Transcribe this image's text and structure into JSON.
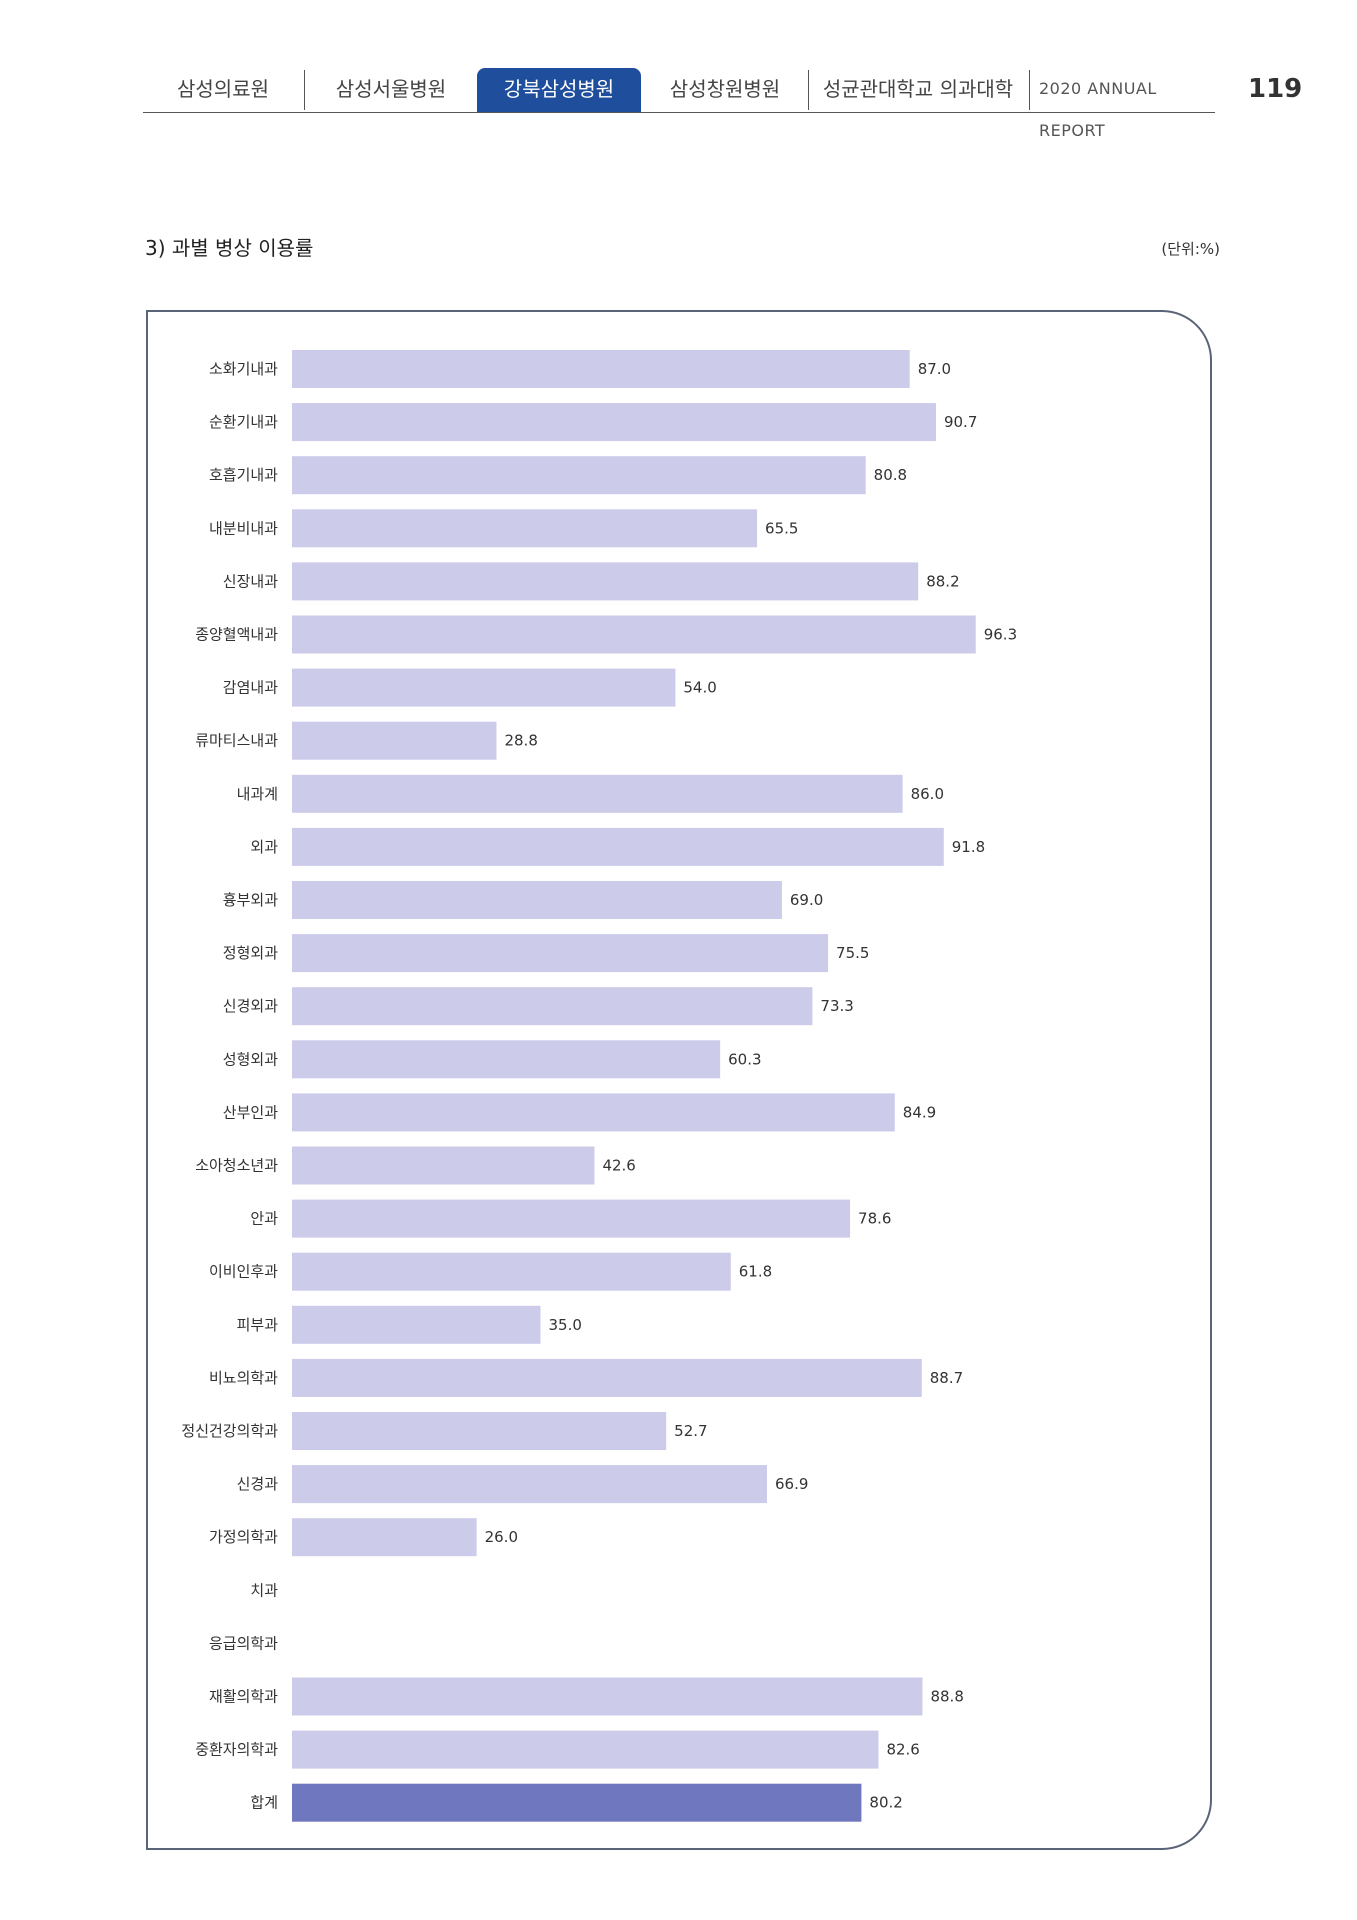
{
  "header": {
    "tabs": [
      {
        "label": "삼성의료원",
        "active": false
      },
      {
        "label": "삼성서울병원",
        "active": false
      },
      {
        "label": "강북삼성병원",
        "active": true
      },
      {
        "label": "삼성창원병원",
        "active": false
      },
      {
        "label": "성균관대학교 의과대학",
        "active": false
      }
    ],
    "report_label": "2020 ANNUAL REPORT",
    "page_number": "119",
    "active_color": "#1f4e9c"
  },
  "section": {
    "title": "3) 과별 병상 이용률",
    "unit": "(단위:%)"
  },
  "chart_data": {
    "type": "bar",
    "orientation": "horizontal",
    "categories": [
      "소화기내과",
      "순환기내과",
      "호흡기내과",
      "내분비내과",
      "신장내과",
      "종양혈액내과",
      "감염내과",
      "류마티스내과",
      "내과계",
      "외과",
      "흉부외과",
      "정형외과",
      "신경외과",
      "성형외과",
      "산부인과",
      "소아청소년과",
      "안과",
      "이비인후과",
      "피부과",
      "비뇨의학과",
      "정신건강의학과",
      "신경과",
      "가정의학과",
      "치과",
      "응급의학과",
      "재활의학과",
      "중환자의학과",
      "합계"
    ],
    "values": [
      87.0,
      90.7,
      80.8,
      65.5,
      88.2,
      96.3,
      54.0,
      28.8,
      86.0,
      91.8,
      69.0,
      75.5,
      73.3,
      60.3,
      84.9,
      42.6,
      78.6,
      61.8,
      35.0,
      88.7,
      52.7,
      66.9,
      26.0,
      null,
      null,
      88.8,
      82.6,
      80.2
    ],
    "value_labels": [
      "87.0",
      "90.7",
      "80.8",
      "65.5",
      "88.2",
      "96.3",
      "54.0",
      "28.8",
      "86.0",
      "91.8",
      "69.0",
      "75.5",
      "73.3",
      "60.3",
      "84.9",
      "42.6",
      "78.6",
      "61.8",
      "35.0",
      "88.7",
      "52.7",
      "66.9",
      "26.0",
      "",
      "",
      "88.8",
      "82.6",
      "80.2"
    ],
    "xlim": [
      0,
      100
    ],
    "grid": false,
    "bar_color": "#cccbea",
    "highlight_color": "#6f77bf",
    "highlight_category": "합계"
  }
}
